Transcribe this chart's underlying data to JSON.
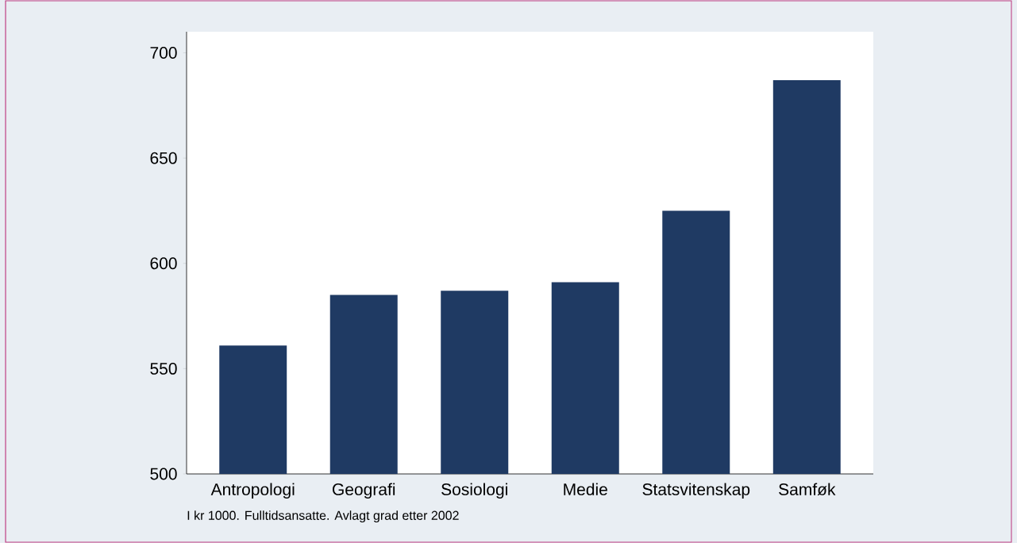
{
  "chart_data": {
    "type": "bar",
    "categories": [
      "Antropologi",
      "Geografi",
      "Sosiologi",
      "Medie",
      "Statsvitenskap",
      "Samføk"
    ],
    "values": [
      561,
      585,
      587,
      591,
      625,
      687
    ],
    "color": "#1f3a63",
    "ylim": [
      500,
      710
    ],
    "yticks": [
      500,
      550,
      600,
      650,
      700
    ],
    "annotations": [
      "I kr 1000. Fulltidsansatte. Avlagt grad etter 2002"
    ]
  }
}
